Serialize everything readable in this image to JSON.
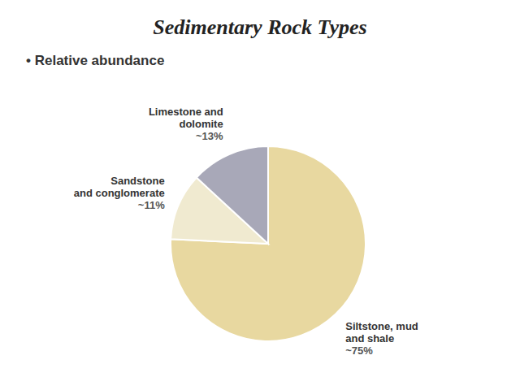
{
  "chart_data": {
    "type": "pie",
    "title": "Sedimentary Rock Types",
    "subtitle": "• Relative abundance",
    "categories": [
      "Siltstone, mud\nand shale",
      "Sandstone\nand conglomerate",
      "Limestone and\ndolomite"
    ],
    "values": [
      75,
      11,
      13
    ],
    "value_labels": [
      "~75%",
      "~11%",
      "~13%"
    ],
    "colors": [
      "#E8D8A0",
      "#F0EAD0",
      "#A8A8B8"
    ],
    "data_labels": true
  }
}
